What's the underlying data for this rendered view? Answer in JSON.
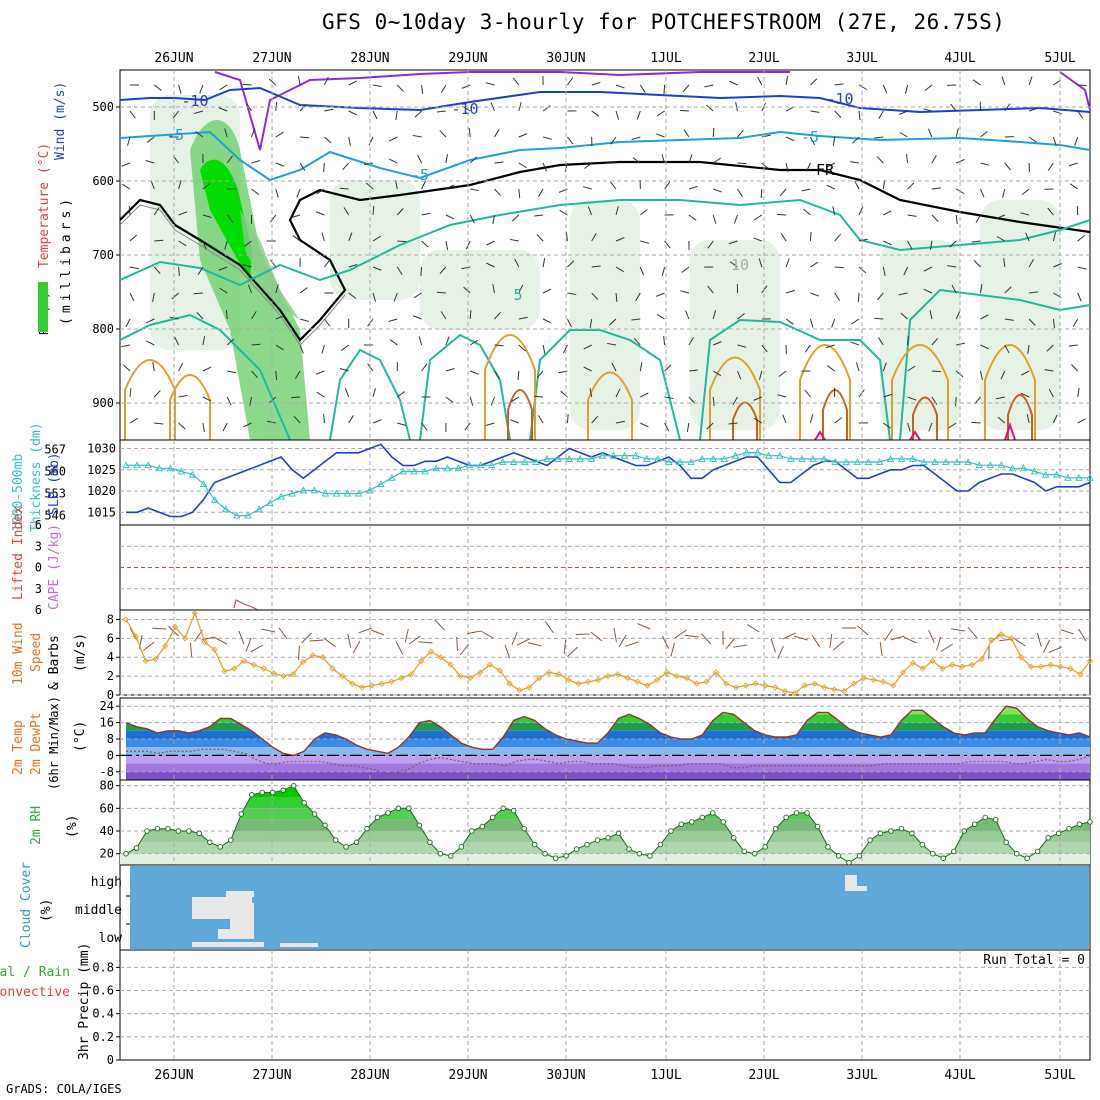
{
  "title": "GFS 0~10day 3-hourly for POTCHEFSTROOM (27E, 26.75S)",
  "footer": "GrADS: COLA/IGES",
  "dates": [
    "26JUN",
    "27JUN",
    "28JUN",
    "29JUN",
    "30JUN",
    "1JUL",
    "2JUL",
    "3JUL",
    "4JUL",
    "5JUL"
  ],
  "colors": {
    "grid": "#aaaaaa",
    "slp": "#1f3fd0",
    "thickness": "#33c0c0",
    "lifted_index": "#e04040",
    "wind": "#e8a030",
    "temp_line": "#8a3a2a",
    "dewpoint": "#8a5a5a",
    "rh_fill": "#33cc33",
    "cloud": "#5fa8d8",
    "text_blue": "#3399cc",
    "text_red": "#e04040",
    "text_orange": "#e07020",
    "text_green": "#33aa33",
    "text_purple": "#cc66cc"
  },
  "panels": {
    "upper": {
      "ylabel_wind": "Wind (m/s)",
      "ylabel_temp": "Temperature (°C)",
      "ylabel_rh": "RH (%)",
      "ylabel_mb": "(millibars)",
      "contour_labels": [
        "-10",
        "-10",
        "-10",
        "-5",
        "-5",
        "-5",
        "5",
        "FR",
        "10"
      ]
    },
    "slp": {
      "ylabel_left1": "1000-500mb",
      "ylabel_left2": "Thickness (dm)",
      "ylabel_right": "SLP (mb)"
    },
    "cape": {
      "ylabel_left": "Lifted Index",
      "ylabel_right": "CAPE (J/kg)"
    },
    "wind10": {
      "ylabel1": "10m Wind",
      "ylabel2": "Speed",
      "ylabel3": "& Barbs",
      "ylabel_unit": "(m/s)"
    },
    "temp": {
      "ylabel1": "2m Temp",
      "ylabel2": "2m DewPt",
      "ylabel3": "(6hr Min/Max)",
      "ylabel_unit": "(°C)"
    },
    "rh": {
      "ylabel1": "2m RH",
      "ylabel_unit": "(%)"
    },
    "cloud": {
      "ylabel1": "Cloud Cover",
      "ylabel_unit": "(%)",
      "levels": [
        "high",
        "middle",
        "low"
      ]
    },
    "precip": {
      "ylabel1": "Total / Rain",
      "ylabel2": "Convective",
      "ylabel3": "3hr Precip (mm)",
      "run_total": "Run Total = 0"
    }
  },
  "chart_data": [
    {
      "type": "line",
      "name": "upper_air",
      "y_ticks": [
        500,
        600,
        700,
        800,
        900
      ],
      "ylim": [
        450,
        950
      ],
      "x_labels": [
        "26JUN",
        "27JUN",
        "28JUN",
        "29JUN",
        "30JUN",
        "1JUL",
        "2JUL",
        "3JUL",
        "4JUL",
        "5JUL"
      ]
    },
    {
      "type": "line",
      "name": "slp_thickness",
      "left_ticks": [
        546,
        553,
        560,
        567
      ],
      "right_ticks": [
        1015,
        1020,
        1025,
        1030
      ],
      "series": [
        {
          "name": "SLP (mb)",
          "ylim": [
            1012,
            1032
          ],
          "values": [
            1015,
            1015,
            1016,
            1015,
            1014,
            1014,
            1015,
            1018,
            1022,
            1023,
            1024,
            1025,
            1026,
            1027,
            1028,
            1025,
            1023,
            1025,
            1027,
            1029,
            1029,
            1029,
            1030,
            1031,
            1028,
            1026,
            1026,
            1027,
            1027,
            1028,
            1027,
            1026,
            1026,
            1027,
            1028,
            1029,
            1028,
            1027,
            1026,
            1028,
            1030,
            1029,
            1028,
            1029,
            1028,
            1027,
            1026,
            1026,
            1027,
            1028,
            1026,
            1023,
            1023,
            1025,
            1026,
            1027,
            1028,
            1028,
            1025,
            1022,
            1022,
            1024,
            1026,
            1027,
            1027,
            1025,
            1023,
            1023,
            1024,
            1025,
            1025,
            1026,
            1026,
            1024,
            1022,
            1020,
            1020,
            1022,
            1023,
            1024,
            1024,
            1023,
            1022,
            1020,
            1021,
            1021,
            1021,
            1022
          ]
        },
        {
          "name": "1000-500mb Thickness (dm)",
          "ylim": [
            543,
            570
          ],
          "values": [
            562,
            562,
            562,
            561,
            561,
            560,
            559,
            556,
            551,
            548,
            546,
            546,
            548,
            550,
            552,
            553,
            554,
            554,
            553,
            553,
            553,
            553,
            554,
            556,
            558,
            560,
            560,
            560,
            561,
            561,
            561,
            562,
            562,
            562,
            563,
            563,
            563,
            563,
            564,
            564,
            564,
            564,
            564,
            565,
            565,
            565,
            565,
            564,
            564,
            563,
            563,
            563,
            564,
            564,
            564,
            565,
            566,
            566,
            565,
            565,
            564,
            564,
            564,
            564,
            563,
            563,
            563,
            563,
            563,
            564,
            564,
            564,
            563,
            563,
            563,
            563,
            563,
            562,
            562,
            562,
            561,
            561,
            560,
            559,
            559,
            558,
            558,
            558
          ]
        }
      ]
    },
    {
      "type": "line",
      "name": "lifted_index_cape",
      "left_ticks": [
        -6,
        -3,
        0,
        3,
        6
      ],
      "ylim": [
        -6,
        6
      ]
    },
    {
      "type": "line",
      "name": "wind_10m",
      "y_ticks": [
        0,
        2,
        4,
        6,
        8
      ],
      "ylim": [
        0,
        9
      ],
      "series": [
        {
          "name": "10m Wind Speed",
          "values": [
            8.0,
            6.2,
            3.6,
            3.8,
            5.2,
            7.2,
            6.0,
            8.7,
            5.6,
            4.8,
            2.5,
            2.8,
            3.6,
            3.2,
            2.8,
            2.3,
            2.0,
            2.2,
            3.5,
            4.2,
            4.0,
            2.8,
            2.0,
            1.2,
            0.8,
            1.0,
            1.2,
            1.4,
            1.8,
            2.2,
            3.6,
            4.6,
            4.0,
            3.2,
            2.0,
            1.8,
            2.4,
            3.2,
            2.6,
            1.2,
            0.5,
            0.8,
            1.8,
            2.4,
            2.2,
            1.6,
            1.2,
            1.4,
            1.6,
            2.0,
            2.2,
            1.8,
            1.4,
            1.0,
            1.6,
            2.4,
            2.0,
            1.8,
            1.2,
            1.4,
            2.4,
            1.2,
            0.8,
            1.0,
            1.2,
            1.0,
            0.8,
            0.4,
            0.2,
            1.0,
            1.2,
            0.8,
            0.6,
            0.4,
            1.2,
            1.8,
            1.6,
            1.4,
            1.0,
            2.4,
            3.4,
            2.8,
            3.6,
            2.8,
            3.2,
            3.0,
            3.2,
            3.8,
            5.8,
            6.4,
            6.0,
            4.0,
            3.0,
            3.0,
            3.2,
            3.0,
            2.8,
            2.2,
            3.6
          ]
        }
      ]
    },
    {
      "type": "area",
      "name": "temp_2m",
      "y_ticks": [
        -8,
        0,
        8,
        16,
        24
      ],
      "ylim": [
        -12,
        28
      ],
      "series": [
        {
          "name": "2m Temp",
          "values": [
            16,
            14,
            13,
            11,
            12,
            12,
            11,
            12,
            14,
            18,
            18,
            15,
            12,
            8,
            4,
            1,
            0,
            2,
            8,
            11,
            10,
            8,
            5,
            3,
            2,
            1,
            4,
            9,
            16,
            17,
            14,
            10,
            6,
            4,
            3,
            3,
            9,
            17,
            19,
            17,
            13,
            10,
            8,
            7,
            6,
            6,
            11,
            18,
            20,
            18,
            15,
            11,
            9,
            8,
            8,
            10,
            17,
            21,
            20,
            16,
            12,
            10,
            9,
            9,
            10,
            17,
            21,
            21,
            17,
            13,
            11,
            10,
            9,
            10,
            17,
            22,
            22,
            18,
            14,
            11,
            10,
            11,
            11,
            18,
            24,
            23,
            18,
            14,
            12,
            11,
            10,
            11,
            9
          ]
        },
        {
          "name": "2m DewPt",
          "values": [
            2,
            2,
            2,
            1,
            2,
            2,
            2,
            3,
            3,
            3,
            2,
            1,
            -2,
            -4,
            -4,
            -3,
            -3,
            -3,
            -3,
            -4,
            -5,
            -5,
            -6,
            -7,
            -9,
            -8,
            -7,
            -4,
            -2,
            -1,
            -2,
            -3,
            -4,
            -4,
            -4,
            -5,
            -3,
            -2,
            -2,
            -3,
            -4,
            -3,
            -3,
            -4,
            -4,
            -4,
            -5,
            -6,
            -6,
            -5,
            -5,
            -5,
            -4,
            -4,
            -4,
            -4,
            -6,
            -6,
            -5,
            -5,
            -5,
            -5,
            -5,
            -5,
            -5,
            -5,
            -5,
            -5,
            -5,
            -5,
            -4,
            -4,
            -4,
            -4,
            -4,
            -4,
            -4,
            -4,
            -3,
            -3,
            -3,
            -3,
            -4,
            -4,
            -3,
            -2,
            -3,
            -3,
            -2,
            0
          ]
        }
      ]
    },
    {
      "type": "area",
      "name": "rh_2m",
      "y_ticks": [
        20,
        40,
        60,
        80
      ],
      "ylim": [
        10,
        85
      ],
      "series": [
        {
          "name": "2m RH",
          "values": [
            20,
            25,
            40,
            42,
            42,
            40,
            40,
            38,
            30,
            26,
            32,
            55,
            72,
            74,
            74,
            76,
            80,
            65,
            55,
            45,
            32,
            26,
            30,
            42,
            52,
            56,
            60,
            60,
            45,
            30,
            20,
            18,
            26,
            40,
            44,
            52,
            60,
            58,
            42,
            28,
            20,
            16,
            18,
            24,
            28,
            32,
            34,
            38,
            24,
            20,
            18,
            28,
            40,
            46,
            48,
            52,
            56,
            48,
            34,
            22,
            20,
            26,
            42,
            52,
            56,
            56,
            44,
            26,
            18,
            12,
            18,
            32,
            38,
            40,
            42,
            38,
            28,
            20,
            16,
            22,
            40,
            46,
            52,
            50,
            30,
            20,
            16,
            22,
            34,
            38,
            42,
            46,
            48
          ]
        }
      ]
    },
    {
      "type": "heatmap",
      "name": "cloud_cover",
      "levels": [
        "high",
        "middle",
        "low"
      ]
    },
    {
      "type": "bar",
      "name": "precip_3hr",
      "y_ticks": [
        0,
        0.2,
        0.4,
        0.6,
        0.8
      ],
      "ylim": [
        0,
        0.95
      ],
      "values": []
    }
  ]
}
